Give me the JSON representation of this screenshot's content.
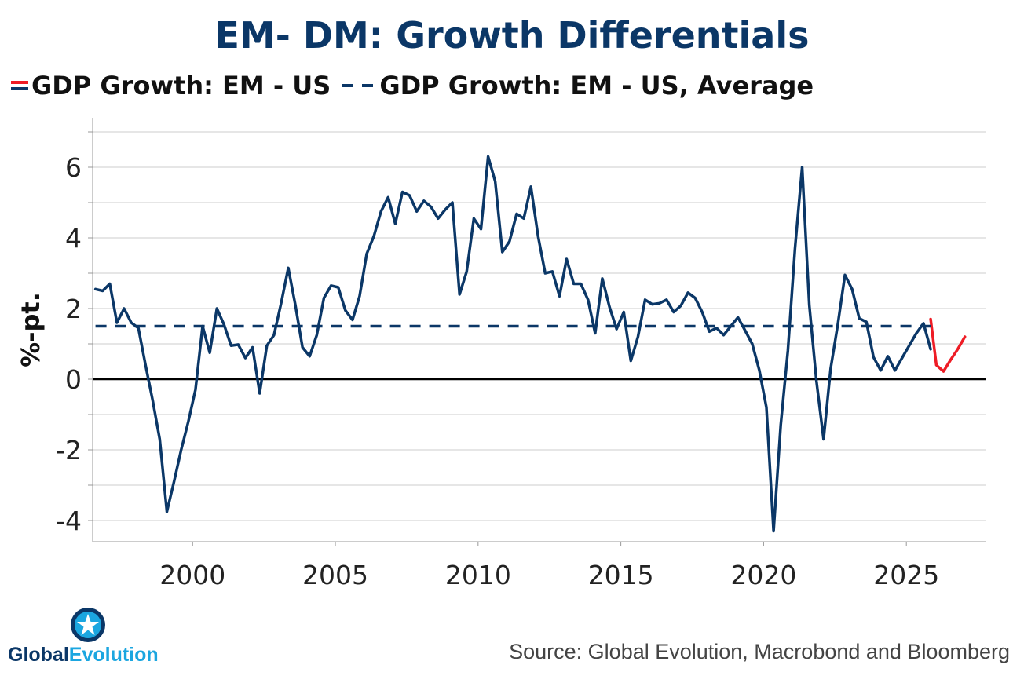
{
  "title": "EM- DM: Growth Differentials",
  "legend": {
    "series1": "GDP Growth: EM - US",
    "series2": "GDP Growth: EM - US, Average"
  },
  "source": "Source: Global Evolution, Macrobond and Bloomberg",
  "logo": {
    "part1": "Global",
    "part2": "Evolution",
    "icon": "star-globe-icon"
  },
  "colors": {
    "primary": "#0b3767",
    "forecast": "#ee1c25",
    "zero": "#000000",
    "grid": "#cccccc"
  },
  "chart_data": {
    "type": "line",
    "title": "EM- DM: Growth Differentials",
    "xlabel": "",
    "ylabel": "%-pt.",
    "xlim": [
      1996.5,
      2027.8
    ],
    "ylim": [
      -4.6,
      7.4
    ],
    "yticks": [
      -4,
      -2,
      0,
      2,
      4,
      6
    ],
    "ytick_labels": [
      "-4",
      "-2",
      "0",
      "2",
      "4",
      "6"
    ],
    "xticks": [
      2000,
      2005,
      2010,
      2015,
      2020,
      2025
    ],
    "xtick_labels": [
      "2000",
      "2005",
      "2010",
      "2015",
      "2020",
      "2025"
    ],
    "average": 1.5,
    "series": [
      {
        "name": "GDP Growth: EM - US",
        "style": "solid",
        "color": "#0b3767",
        "x": [
          1996.6,
          1996.85,
          1997.1,
          1997.35,
          1997.6,
          1997.85,
          1998.1,
          1998.35,
          1998.6,
          1998.85,
          1999.1,
          1999.35,
          1999.6,
          1999.85,
          2000.1,
          2000.35,
          2000.6,
          2000.85,
          2001.1,
          2001.35,
          2001.6,
          2001.85,
          2002.1,
          2002.35,
          2002.6,
          2002.85,
          2003.1,
          2003.35,
          2003.6,
          2003.85,
          2004.1,
          2004.35,
          2004.6,
          2004.85,
          2005.1,
          2005.35,
          2005.6,
          2005.85,
          2006.1,
          2006.35,
          2006.6,
          2006.85,
          2007.1,
          2007.35,
          2007.6,
          2007.85,
          2008.1,
          2008.35,
          2008.6,
          2008.85,
          2009.1,
          2009.35,
          2009.6,
          2009.85,
          2010.1,
          2010.35,
          2010.6,
          2010.85,
          2011.1,
          2011.35,
          2011.6,
          2011.85,
          2012.1,
          2012.35,
          2012.6,
          2012.85,
          2013.1,
          2013.35,
          2013.6,
          2013.85,
          2014.1,
          2014.35,
          2014.6,
          2014.85,
          2015.1,
          2015.35,
          2015.6,
          2015.85,
          2016.1,
          2016.35,
          2016.6,
          2016.85,
          2017.1,
          2017.35,
          2017.6,
          2017.85,
          2018.1,
          2018.35,
          2018.6,
          2018.85,
          2019.1,
          2019.35,
          2019.6,
          2019.85,
          2020.1,
          2020.35,
          2020.6,
          2020.85,
          2021.1,
          2021.35,
          2021.6,
          2021.85,
          2022.1,
          2022.35,
          2022.6,
          2022.85,
          2023.1,
          2023.35,
          2023.6,
          2023.85,
          2024.1,
          2024.35,
          2024.6,
          2024.85,
          2025.1,
          2025.35,
          2025.6,
          2025.85
        ],
        "values": [
          2.55,
          2.5,
          2.7,
          1.6,
          2.0,
          1.6,
          1.45,
          0.4,
          -0.6,
          -1.7,
          -3.75,
          -2.9,
          -2.0,
          -1.2,
          -0.3,
          1.5,
          0.75,
          2.0,
          1.55,
          0.95,
          0.98,
          0.6,
          0.9,
          -0.4,
          0.95,
          1.25,
          2.15,
          3.15,
          2.1,
          0.9,
          0.65,
          1.25,
          2.3,
          2.65,
          2.6,
          1.95,
          1.68,
          2.35,
          3.55,
          4.05,
          4.75,
          5.15,
          4.4,
          5.3,
          5.2,
          4.75,
          5.05,
          4.88,
          4.55,
          4.8,
          5.0,
          2.4,
          3.05,
          4.55,
          4.25,
          6.3,
          5.6,
          3.6,
          3.9,
          4.68,
          4.55,
          5.45,
          4.05,
          3.0,
          3.05,
          2.35,
          3.4,
          2.7,
          2.7,
          2.25,
          1.3,
          2.85,
          2.05,
          1.42,
          1.9,
          0.52,
          1.2,
          2.25,
          2.12,
          2.15,
          2.25,
          1.9,
          2.08,
          2.45,
          2.3,
          1.9,
          1.35,
          1.45,
          1.25,
          1.5,
          1.75,
          1.38,
          1.0,
          0.25,
          -0.8,
          -4.3,
          -1.3,
          0.8,
          3.7,
          6.0,
          2.1,
          -0.05,
          -1.7,
          0.3,
          1.55,
          2.95,
          2.55,
          1.72,
          1.62,
          0.62,
          0.25,
          0.65,
          0.25,
          0.6,
          0.95,
          1.3,
          1.58,
          0.85
        ]
      },
      {
        "name": "GDP Growth: EM - US (forecast)",
        "style": "solid",
        "color": "#ee1c25",
        "x": [
          2025.85,
          2026.05,
          2026.3,
          2026.55,
          2026.8,
          2027.05
        ],
        "values": [
          1.7,
          0.4,
          0.22,
          0.55,
          0.85,
          1.2
        ]
      },
      {
        "name": "GDP Growth: EM - US, Average",
        "style": "dashed",
        "color": "#0b3767",
        "x": [
          1996.6,
          2026.0
        ],
        "values": [
          1.5,
          1.5
        ]
      }
    ]
  }
}
